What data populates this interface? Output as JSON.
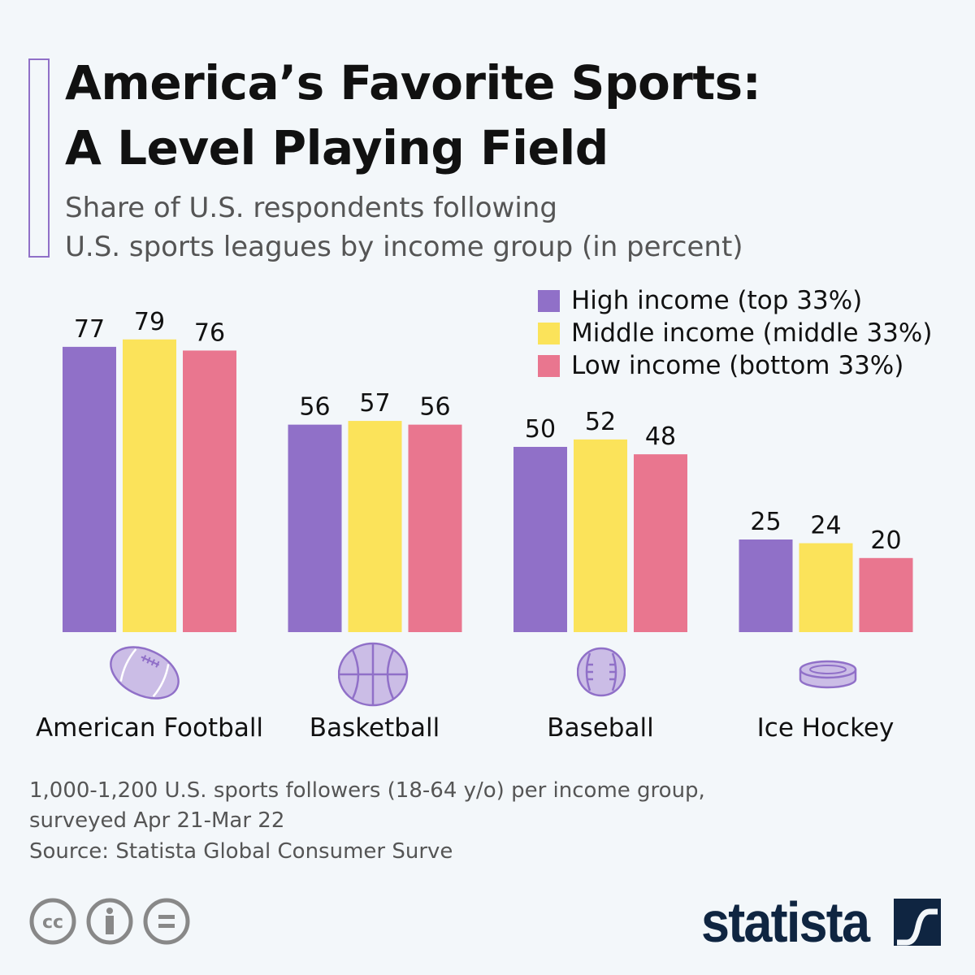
{
  "title_lines": [
    "America’s Favorite Sports:",
    "A Level Playing Field"
  ],
  "subtitle_lines": [
    "Share of U.S. respondents following",
    "U.S. sports leagues by income group (in percent)"
  ],
  "chart_data": {
    "type": "bar",
    "title": "America’s Favorite Sports: A Level Playing Field",
    "subtitle": "Share of U.S. respondents following U.S. sports leagues by income group (in percent)",
    "categories": [
      "American Football",
      "Basketball",
      "Baseball",
      "Ice Hockey"
    ],
    "series": [
      {
        "name": "High income (top 33%)",
        "color": "#9070c8",
        "values": [
          77,
          56,
          50,
          25
        ]
      },
      {
        "name": "Middle income (middle 33%)",
        "color": "#fbe35a",
        "values": [
          79,
          57,
          52,
          24
        ]
      },
      {
        "name": "Low income (bottom 33%)",
        "color": "#e9768f",
        "values": [
          76,
          56,
          48,
          20
        ]
      }
    ],
    "ylim": [
      0,
      85
    ],
    "grid": false,
    "legend_position": "top-right",
    "category_icons": [
      "american-football-icon",
      "basketball-icon",
      "baseball-icon",
      "hockey-puck-icon"
    ]
  },
  "notes": [
    "1,000-1,200 U.S. sports followers (18-64 y/o) per income group,",
    "surveyed Apr 21-Mar 22"
  ],
  "source": "Source: Statista Global Consumer Surve",
  "license_icons": [
    "creative-commons-icon",
    "attribution-icon",
    "no-derivatives-icon"
  ],
  "logo": "statista",
  "colors": {
    "accent": "#9070c8",
    "icon_fill": "#cbbde6",
    "logo": "#0f2541"
  }
}
